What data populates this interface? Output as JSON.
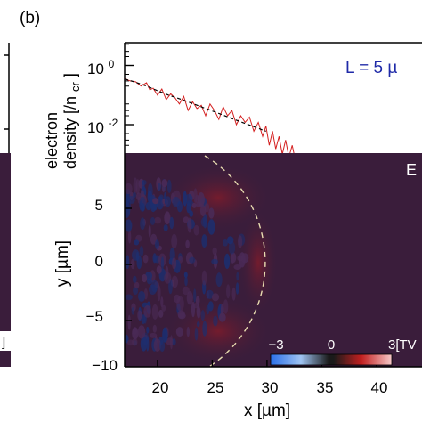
{
  "panel_label": "(b)",
  "top_plot": {
    "ylabel_line1": "electron",
    "ylabel_line2": "density [/n",
    "ylabel_sub": "cr",
    "ylabel_close": "]",
    "ytick_labels": [
      "10",
      "10"
    ],
    "ytick_exponents": [
      "0",
      "-2"
    ],
    "annotation": "L = 5 µ"
  },
  "bottom_plot": {
    "ylabel": "y [µm]",
    "xlabel": "x [µm]",
    "corner_label": "E",
    "left_panel_fragment": "]",
    "xtick_labels": [
      "20",
      "25",
      "30",
      "35",
      "40"
    ],
    "ytick_labels": [
      "5",
      "0",
      "−5",
      "−10"
    ],
    "colorbar_labels": [
      "−3",
      "0",
      "3[TV"
    ],
    "colors": {
      "field_background": "#3a1d3b",
      "red_lobe": "#7a1c2c",
      "blue_speckle": "#1d2e6e",
      "dashed_circle": "#e8dcb0",
      "annotation": "#1f2aa8",
      "profile_red": "#d42020"
    }
  },
  "chart_data": [
    {
      "type": "line",
      "title": "",
      "xlabel": "",
      "ylabel": "electron density [/ncr]",
      "yscale": "log",
      "x_unit": "µm",
      "ylim": [
        0.0004,
        3
      ],
      "xlim": [
        17,
        40
      ],
      "series": [
        {
          "style": "black-dashed",
          "x": [
            17,
            18,
            19,
            20,
            21,
            22,
            23,
            24,
            25,
            26,
            27,
            28,
            29,
            29.9
          ],
          "y": [
            0.35,
            0.27,
            0.2,
            0.14,
            0.1,
            0.075,
            0.055,
            0.04,
            0.029,
            0.021,
            0.015,
            0.011,
            0.008,
            0.006
          ]
        },
        {
          "style": "red-solid",
          "x": [
            17,
            17.5,
            18,
            18.5,
            19,
            19.3,
            19.6,
            20,
            20.4,
            20.8,
            21.2,
            21.6,
            22,
            22.4,
            22.8,
            23.2,
            23.6,
            24,
            24.4,
            24.8,
            25.2,
            25.6,
            26,
            26.4,
            26.8,
            27.2,
            27.6,
            28,
            28.4,
            28.8,
            29.2,
            29.6,
            29.9,
            30.2,
            30.5,
            30.8,
            31.1,
            31.4,
            31.7,
            32,
            32.3,
            32.6
          ],
          "y": [
            0.36,
            0.3,
            0.28,
            0.2,
            0.26,
            0.15,
            0.17,
            0.1,
            0.16,
            0.07,
            0.11,
            0.08,
            0.05,
            0.09,
            0.03,
            0.06,
            0.035,
            0.045,
            0.02,
            0.05,
            0.03,
            0.015,
            0.04,
            0.02,
            0.03,
            0.01,
            0.02,
            0.012,
            0.018,
            0.006,
            0.012,
            0.004,
            0.009,
            0.002,
            0.006,
            0.0015,
            0.004,
            0.001,
            0.003,
            0.0008,
            0.002,
            0.0006
          ]
        }
      ]
    },
    {
      "type": "heatmap",
      "title": "",
      "xlabel": "x [µm]",
      "ylabel": "y [µm]",
      "xlim": [
        17,
        43
      ],
      "ylim": [
        -10.5,
        9.5
      ],
      "xticks": [
        20,
        25,
        30,
        35,
        40
      ],
      "yticks": [
        5,
        0,
        -5,
        -10
      ],
      "colorbar": {
        "min": -3,
        "max": 3,
        "unit": "TV/m",
        "ticks": [
          -3,
          0,
          3
        ]
      },
      "annotations": [
        "dashed circular arc through approx. (30, 0)"
      ]
    }
  ]
}
